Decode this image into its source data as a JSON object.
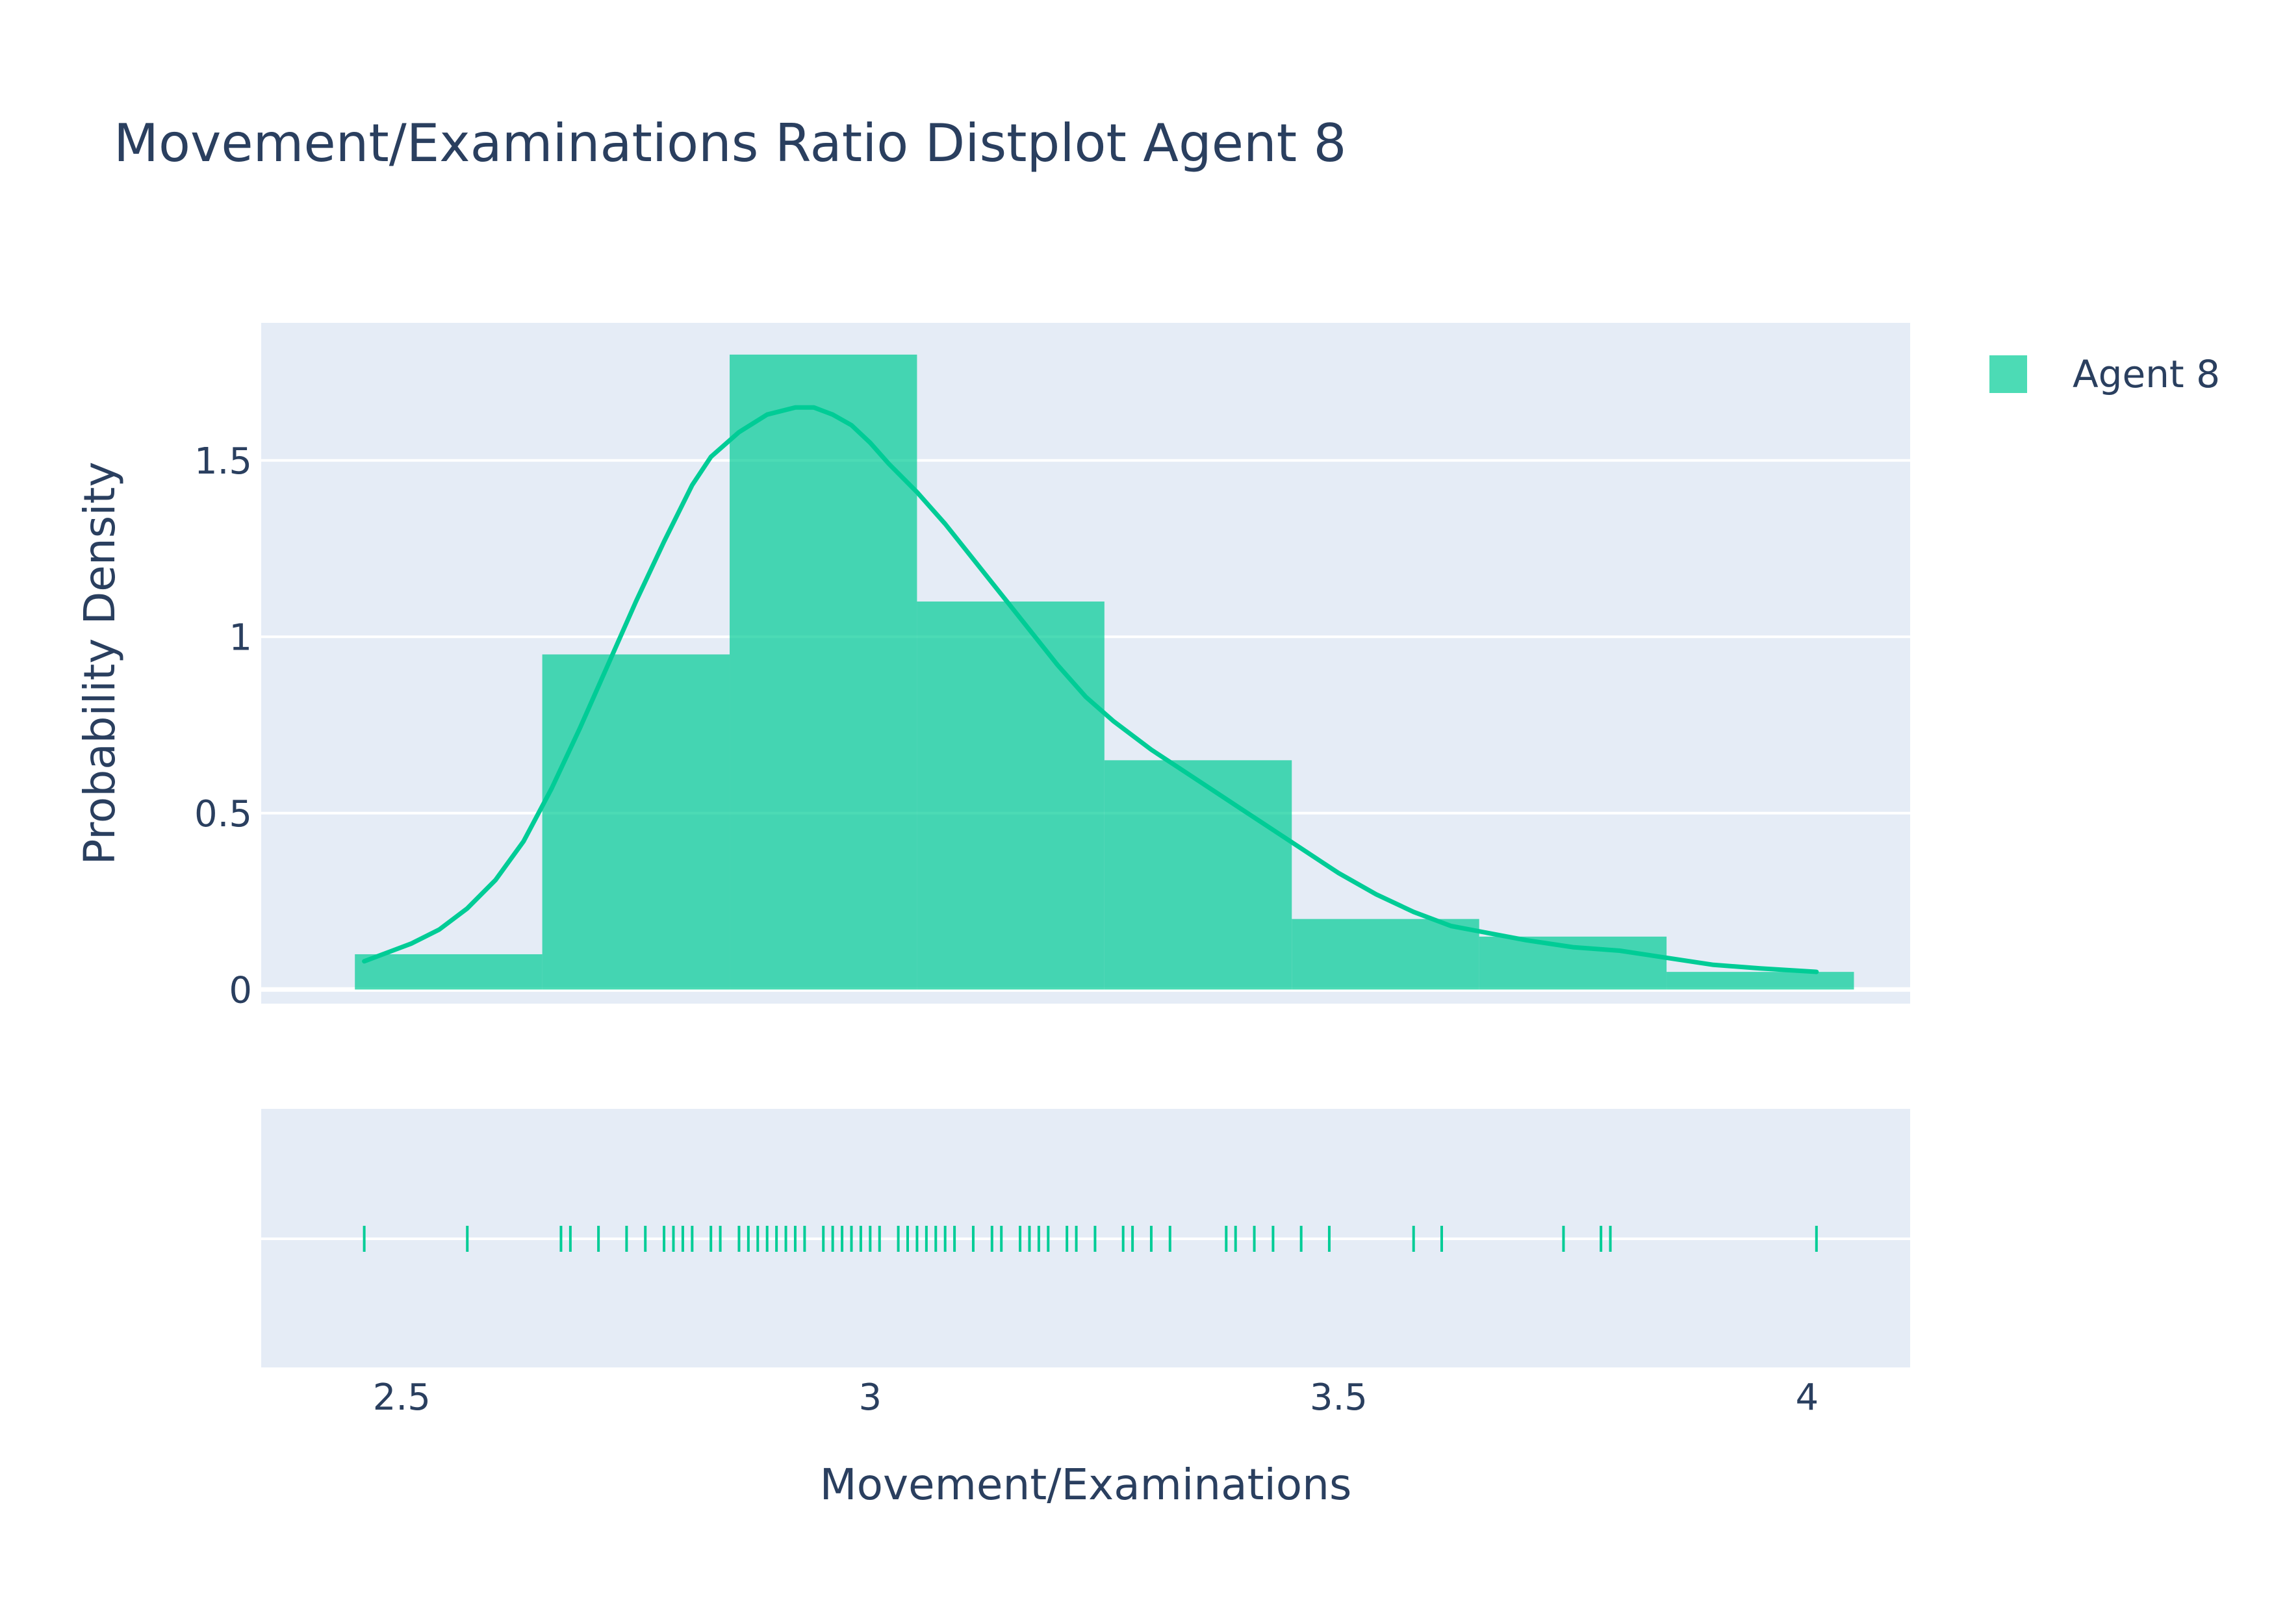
{
  "chart_data": {
    "type": "histogram",
    "title": "Movement/Examinations Ratio Distplot Agent 8",
    "xlabel": "Movement/Examinations",
    "ylabel": "Probability Density",
    "xlim": [
      2.35,
      4.11
    ],
    "ylim": [
      -0.04,
      1.89
    ],
    "x_ticks": [
      2.5,
      3,
      3.5,
      4
    ],
    "x_tick_labels": [
      "2.5",
      "3",
      "3.5",
      "4"
    ],
    "y_ticks": [
      0,
      0.5,
      1,
      1.5
    ],
    "y_tick_labels": [
      "0",
      "0.5",
      "1",
      "1.5"
    ],
    "legend": {
      "position": "top-right",
      "entries": [
        "Agent 8"
      ]
    },
    "color": "#00cc96",
    "bins": [
      {
        "x0": 2.45,
        "x1": 2.65,
        "density": 0.1
      },
      {
        "x0": 2.65,
        "x1": 2.85,
        "density": 0.95
      },
      {
        "x0": 2.85,
        "x1": 3.05,
        "density": 1.8
      },
      {
        "x0": 3.05,
        "x1": 3.25,
        "density": 1.1
      },
      {
        "x0": 3.25,
        "x1": 3.45,
        "density": 0.65
      },
      {
        "x0": 3.45,
        "x1": 3.65,
        "density": 0.2
      },
      {
        "x0": 3.65,
        "x1": 3.85,
        "density": 0.15
      },
      {
        "x0": 3.85,
        "x1": 4.05,
        "density": 0.05
      }
    ],
    "kde": {
      "x": [
        2.46,
        2.49,
        2.51,
        2.54,
        2.57,
        2.6,
        2.63,
        2.66,
        2.69,
        2.72,
        2.75,
        2.78,
        2.81,
        2.83,
        2.86,
        2.89,
        2.92,
        2.94,
        2.96,
        2.98,
        3.0,
        3.02,
        3.05,
        3.08,
        3.11,
        3.14,
        3.17,
        3.2,
        3.23,
        3.26,
        3.3,
        3.34,
        3.38,
        3.42,
        3.46,
        3.5,
        3.54,
        3.58,
        3.62,
        3.66,
        3.7,
        3.75,
        3.8,
        3.85,
        3.9,
        3.95,
        4.01
      ],
      "y": [
        0.08,
        0.11,
        0.13,
        0.17,
        0.23,
        0.31,
        0.42,
        0.57,
        0.74,
        0.92,
        1.1,
        1.27,
        1.43,
        1.51,
        1.58,
        1.63,
        1.65,
        1.65,
        1.63,
        1.6,
        1.55,
        1.49,
        1.41,
        1.32,
        1.22,
        1.12,
        1.02,
        0.92,
        0.83,
        0.76,
        0.68,
        0.61,
        0.54,
        0.47,
        0.4,
        0.33,
        0.27,
        0.22,
        0.18,
        0.16,
        0.14,
        0.12,
        0.11,
        0.09,
        0.07,
        0.06,
        0.05
      ]
    },
    "rug": [
      2.46,
      2.57,
      2.67,
      2.68,
      2.71,
      2.74,
      2.76,
      2.78,
      2.79,
      2.8,
      2.81,
      2.83,
      2.84,
      2.86,
      2.87,
      2.88,
      2.89,
      2.9,
      2.91,
      2.92,
      2.93,
      2.95,
      2.96,
      2.97,
      2.98,
      2.99,
      3.0,
      3.01,
      3.03,
      3.04,
      3.05,
      3.06,
      3.07,
      3.08,
      3.09,
      3.11,
      3.13,
      3.14,
      3.16,
      3.17,
      3.18,
      3.19,
      3.21,
      3.22,
      3.24,
      3.27,
      3.28,
      3.3,
      3.32,
      3.38,
      3.39,
      3.41,
      3.43,
      3.46,
      3.49,
      3.58,
      3.61,
      3.74,
      3.78,
      3.79,
      4.01
    ]
  }
}
